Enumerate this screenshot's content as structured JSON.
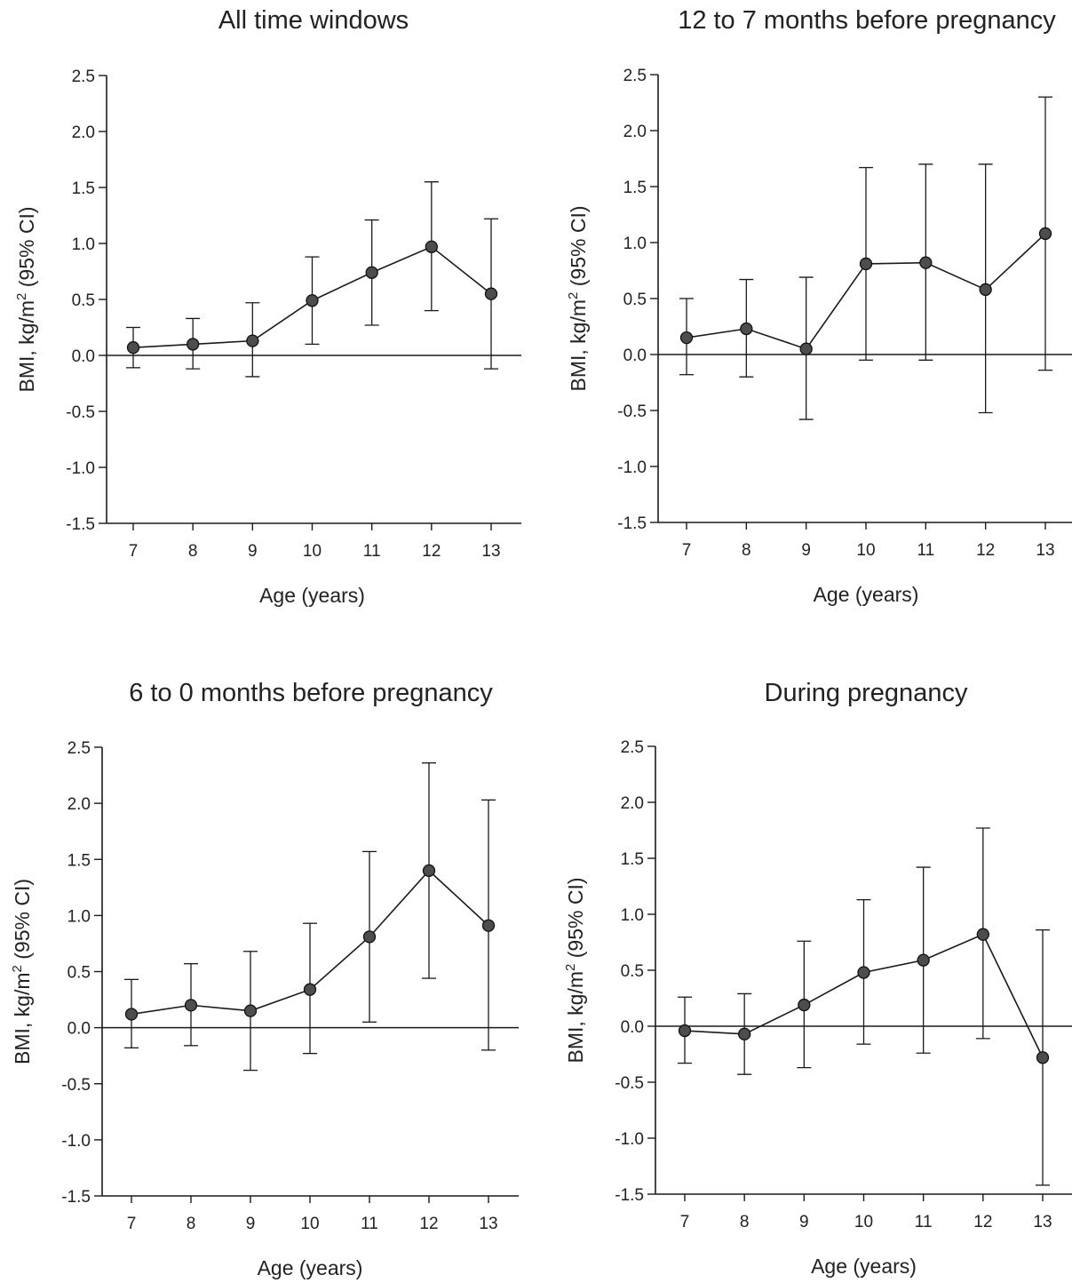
{
  "chart_data": [
    {
      "type": "line",
      "title": "All time windows",
      "xlabel": "Age (years)",
      "ylabel_main": "BMI, kg/m",
      "ylabel_sup": "2",
      "ylabel_tail": " (95% CI)",
      "ylim": [
        -1.5,
        2.5
      ],
      "yticks": [
        "2.5",
        "2.0",
        "1.5",
        "1.0",
        "0.5",
        "0.0",
        "-0.5",
        "-1.0",
        "-1.5"
      ],
      "x": [
        "7",
        "8",
        "9",
        "10",
        "11",
        "12",
        "13"
      ],
      "values": [
        0.07,
        0.1,
        0.13,
        0.49,
        0.74,
        0.97,
        0.55
      ],
      "ci_lower": [
        -0.11,
        -0.12,
        -0.19,
        0.1,
        0.27,
        0.4,
        -0.12
      ],
      "ci_upper": [
        0.25,
        0.33,
        0.47,
        0.88,
        1.21,
        1.55,
        1.22
      ]
    },
    {
      "type": "line",
      "title": "12 to 7 months before pregnancy",
      "xlabel": "Age (years)",
      "ylabel_main": "BMI, kg/m",
      "ylabel_sup": "2",
      "ylabel_tail": " (95% CI)",
      "ylim": [
        -1.5,
        2.5
      ],
      "yticks": [
        "2.5",
        "2.0",
        "1.5",
        "1.0",
        "0.5",
        "0.0",
        "-0.5",
        "-1.0",
        "-1.5"
      ],
      "x": [
        "7",
        "8",
        "9",
        "10",
        "11",
        "12",
        "13"
      ],
      "values": [
        0.15,
        0.23,
        0.05,
        0.81,
        0.82,
        0.58,
        1.08
      ],
      "ci_lower": [
        -0.18,
        -0.2,
        -0.58,
        -0.05,
        -0.05,
        -0.52,
        -0.14
      ],
      "ci_upper": [
        0.5,
        0.67,
        0.69,
        1.67,
        1.7,
        1.7,
        2.3
      ]
    },
    {
      "type": "line",
      "title": "6 to 0 months before pregnancy",
      "xlabel": "Age (years)",
      "ylabel_main": "BMI, kg/m",
      "ylabel_sup": "2",
      "ylabel_tail": " (95% CI)",
      "ylim": [
        -1.5,
        2.5
      ],
      "yticks": [
        "2.5",
        "2.0",
        "1.5",
        "1.0",
        "0.5",
        "0.0",
        "-0.5",
        "-1.0",
        "-1.5"
      ],
      "x": [
        "7",
        "8",
        "9",
        "10",
        "11",
        "12",
        "13"
      ],
      "values": [
        0.12,
        0.2,
        0.15,
        0.34,
        0.81,
        1.4,
        0.91
      ],
      "ci_lower": [
        -0.18,
        -0.16,
        -0.38,
        -0.23,
        0.05,
        0.44,
        -0.2
      ],
      "ci_upper": [
        0.43,
        0.57,
        0.68,
        0.93,
        1.57,
        2.36,
        2.03
      ]
    },
    {
      "type": "line",
      "title": "During pregnancy",
      "xlabel": "Age (years)",
      "ylabel_main": "BMI, kg/m",
      "ylabel_sup": "2",
      "ylabel_tail": " (95% CI)",
      "ylim": [
        -1.5,
        2.5
      ],
      "yticks": [
        "2.5",
        "2.0",
        "1.5",
        "1.0",
        "0.5",
        "0.0",
        "-0.5",
        "-1.0",
        "-1.5"
      ],
      "x": [
        "7",
        "8",
        "9",
        "10",
        "11",
        "12",
        "13"
      ],
      "values": [
        -0.04,
        -0.07,
        0.19,
        0.48,
        0.59,
        0.82,
        -0.28
      ],
      "ci_lower": [
        -0.33,
        -0.43,
        -0.37,
        -0.16,
        -0.24,
        -0.11,
        -1.42
      ],
      "ci_upper": [
        0.26,
        0.29,
        0.76,
        1.13,
        1.42,
        1.77,
        0.86
      ]
    }
  ],
  "colors": {
    "marker_fill": "#4d4d4d",
    "line": "#1a1a1a",
    "axis": "#1a1a1a"
  }
}
